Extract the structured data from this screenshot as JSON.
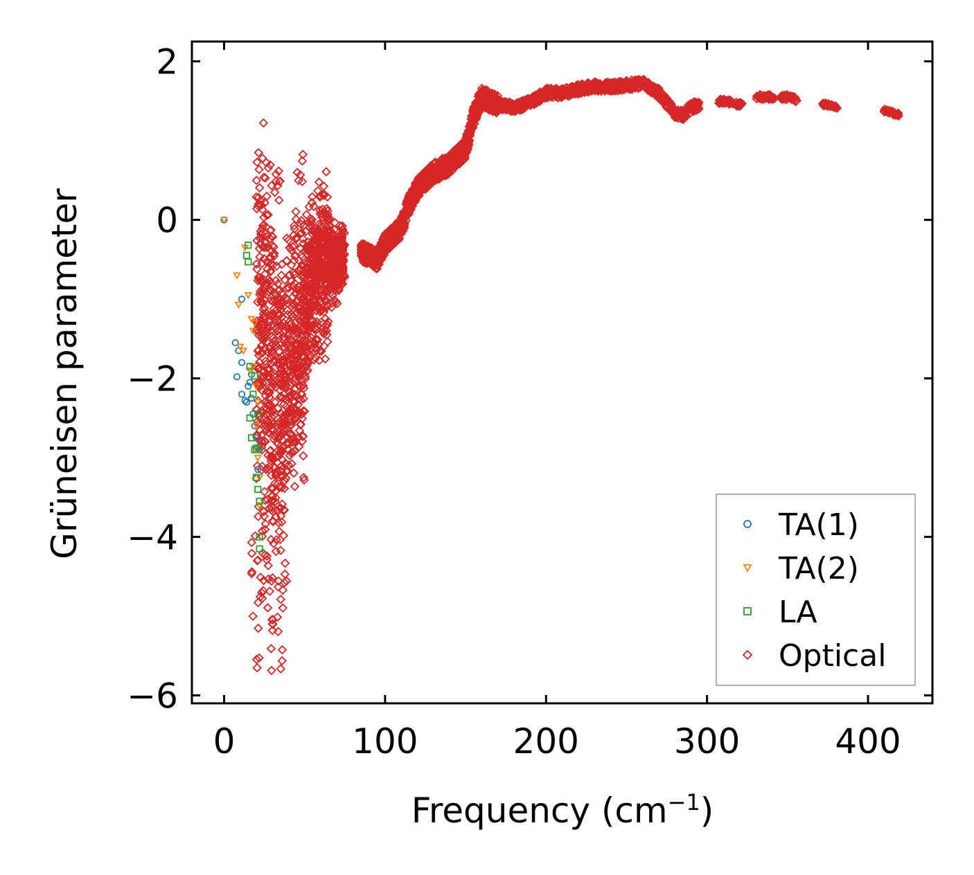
{
  "chart_data": {
    "type": "scatter",
    "xlabel": "Frequency (cm",
    "xlabel_sup": "−1",
    "xlabel_end": ")",
    "ylabel": "Grüneisen parameter",
    "xlim": [
      -20,
      440
    ],
    "ylim": [
      -6.1,
      2.25
    ],
    "xticks": [
      0,
      100,
      200,
      300,
      400
    ],
    "xtick_labels": [
      "0",
      "100",
      "200",
      "300",
      "400"
    ],
    "yticks": [
      2,
      0,
      -2,
      -4,
      -6
    ],
    "ytick_labels": [
      "2",
      "0",
      "−2",
      "−4",
      "−6"
    ],
    "legend_position": "lower-right",
    "series": [
      {
        "name": "TA(1)",
        "marker": "circle",
        "color": "#1f77b4",
        "points": [
          [
            0,
            0
          ],
          [
            11,
            -1.0
          ],
          [
            7,
            -1.55
          ],
          [
            9,
            -1.65
          ],
          [
            11,
            -1.8
          ],
          [
            8,
            -1.98
          ],
          [
            11,
            -2.2
          ],
          [
            14,
            -2.3
          ],
          [
            16,
            -2.05
          ],
          [
            17,
            -2.25
          ],
          [
            18,
            -2.45
          ],
          [
            20,
            -2.75
          ],
          [
            21,
            -3.15
          ],
          [
            19,
            -2.6
          ],
          [
            15,
            -2.1
          ],
          [
            13,
            -2.28
          ],
          [
            22,
            -2.9
          ],
          [
            17,
            -1.95
          ]
        ]
      },
      {
        "name": "TA(2)",
        "marker": "triangle-down",
        "color": "#ff7f0e",
        "points": [
          [
            0,
            0
          ],
          [
            13,
            -0.35
          ],
          [
            8,
            -0.7
          ],
          [
            15,
            -0.95
          ],
          [
            9,
            -1.07
          ],
          [
            17,
            -1.25
          ],
          [
            18,
            -1.4
          ],
          [
            10,
            -1.6
          ],
          [
            12,
            -1.65
          ],
          [
            18,
            -1.85
          ],
          [
            20,
            -2.1
          ],
          [
            21,
            -2.3
          ],
          [
            20,
            -2.6
          ],
          [
            21,
            -3.0
          ],
          [
            22,
            -3.25
          ],
          [
            22,
            -3.6
          ],
          [
            19,
            -1.3
          ],
          [
            16,
            -1.9
          ]
        ]
      },
      {
        "name": "LA",
        "marker": "square",
        "color": "#2ca02c",
        "points": [
          [
            15,
            -0.32
          ],
          [
            14,
            -0.45
          ],
          [
            15,
            -0.53
          ],
          [
            16,
            -1.85
          ],
          [
            19,
            -1.97
          ],
          [
            18,
            -2.2
          ],
          [
            16,
            -2.5
          ],
          [
            17,
            -2.75
          ],
          [
            19,
            -2.9
          ],
          [
            20,
            -3.25
          ],
          [
            21,
            -3.4
          ],
          [
            22,
            -3.55
          ],
          [
            22,
            -4.0
          ],
          [
            22,
            -4.15
          ],
          [
            21,
            -2.45
          ],
          [
            20,
            -2.88
          ]
        ]
      },
      {
        "name": "Optical",
        "marker": "diamond",
        "color": "#d62728",
        "points": [],
        "curve": [
          [
            20,
            -1.2
          ],
          [
            25,
            -1.5
          ],
          [
            30,
            -2.0
          ],
          [
            35,
            -2.2
          ],
          [
            40,
            -2.0
          ],
          [
            45,
            -1.5
          ],
          [
            50,
            -1.2
          ],
          [
            55,
            -0.8
          ],
          [
            60,
            -0.6
          ],
          [
            65,
            -0.5
          ],
          [
            70,
            -0.55
          ],
          [
            78,
            -0.45
          ],
          [
            85,
            -0.4
          ],
          [
            95,
            -0.5
          ],
          [
            100,
            -0.3
          ],
          [
            110,
            -0.1
          ],
          [
            115,
            0.2
          ],
          [
            120,
            0.4
          ],
          [
            130,
            0.6
          ],
          [
            140,
            0.7
          ],
          [
            150,
            0.9
          ],
          [
            155,
            1.3
          ],
          [
            160,
            1.55
          ],
          [
            170,
            1.45
          ],
          [
            180,
            1.42
          ],
          [
            190,
            1.48
          ],
          [
            200,
            1.6
          ],
          [
            210,
            1.6
          ],
          [
            220,
            1.65
          ],
          [
            230,
            1.68
          ],
          [
            240,
            1.68
          ],
          [
            250,
            1.7
          ],
          [
            260,
            1.72
          ],
          [
            270,
            1.6
          ],
          [
            280,
            1.35
          ],
          [
            285,
            1.32
          ],
          [
            290,
            1.42
          ],
          [
            310,
            1.5
          ],
          [
            320,
            1.46
          ],
          [
            330,
            1.55
          ],
          [
            340,
            1.55
          ],
          [
            350,
            1.55
          ],
          [
            355,
            1.52
          ],
          [
            375,
            1.45
          ],
          [
            380,
            1.42
          ],
          [
            410,
            1.38
          ],
          [
            418,
            1.33
          ]
        ]
      }
    ]
  }
}
